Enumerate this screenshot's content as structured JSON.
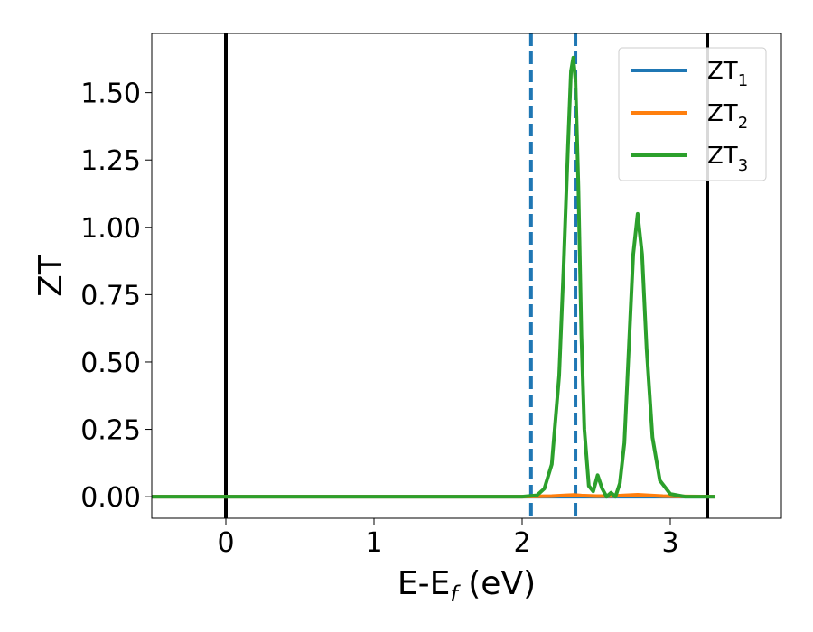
{
  "chart_data": {
    "type": "line",
    "xlabel": "E-E",
    "xlabel_sub": "f",
    "xlabel_unit": " (eV)",
    "ylabel": "ZT",
    "xlim": [
      -0.5,
      3.75
    ],
    "ylim": [
      -0.08,
      1.72
    ],
    "x_ticks": [
      {
        "value": 0,
        "label": "0"
      },
      {
        "value": 1,
        "label": "1"
      },
      {
        "value": 2,
        "label": "2"
      },
      {
        "value": 3,
        "label": "3"
      }
    ],
    "y_ticks": [
      {
        "value": 0.0,
        "label": "0.00"
      },
      {
        "value": 0.25,
        "label": "0.25"
      },
      {
        "value": 0.5,
        "label": "0.50"
      },
      {
        "value": 0.75,
        "label": "0.75"
      },
      {
        "value": 1.0,
        "label": "1.00"
      },
      {
        "value": 1.25,
        "label": "1.25"
      },
      {
        "value": 1.5,
        "label": "1.50"
      }
    ],
    "grid": false,
    "legend_position": "top-right",
    "vertical_lines": [
      {
        "x": 0.0,
        "style": "solid",
        "color": "#000000"
      },
      {
        "x": 3.25,
        "style": "solid",
        "color": "#000000"
      },
      {
        "x": 2.06,
        "style": "dashed",
        "color": "#1f77b4"
      },
      {
        "x": 2.36,
        "style": "dashed",
        "color": "#1f77b4"
      }
    ],
    "series": [
      {
        "name": "ZT",
        "name_sub": "1",
        "color": "#1f77b4",
        "x": [
          -0.5,
          1.0,
          2.0,
          2.5,
          3.0,
          3.3
        ],
        "y": [
          0,
          0,
          0,
          0,
          0,
          0
        ]
      },
      {
        "name": "ZT",
        "name_sub": "2",
        "color": "#ff7f0e",
        "x": [
          -0.5,
          2.0,
          2.1,
          2.2,
          2.3,
          2.35,
          2.4,
          2.5,
          2.6,
          2.7,
          2.78,
          2.85,
          2.95,
          3.05,
          3.3
        ],
        "y": [
          0,
          0,
          0.001,
          0.002,
          0.005,
          0.006,
          0.004,
          0.002,
          0.002,
          0.005,
          0.007,
          0.005,
          0.002,
          0.001,
          0
        ]
      },
      {
        "name": "ZT",
        "name_sub": "3",
        "color": "#2ca02c",
        "x": [
          -0.5,
          2.0,
          2.1,
          2.15,
          2.2,
          2.25,
          2.28,
          2.31,
          2.33,
          2.345,
          2.36,
          2.38,
          2.4,
          2.42,
          2.45,
          2.48,
          2.51,
          2.54,
          2.57,
          2.6,
          2.63,
          2.66,
          2.69,
          2.72,
          2.75,
          2.78,
          2.81,
          2.84,
          2.88,
          2.93,
          3.0,
          3.1,
          3.3
        ],
        "y": [
          0,
          0,
          0.005,
          0.03,
          0.12,
          0.45,
          0.85,
          1.3,
          1.58,
          1.63,
          1.55,
          1.15,
          0.6,
          0.25,
          0.04,
          0.02,
          0.08,
          0.03,
          0.0,
          0.015,
          0.0,
          0.05,
          0.2,
          0.55,
          0.9,
          1.05,
          0.9,
          0.55,
          0.22,
          0.06,
          0.01,
          0.0,
          0.0
        ]
      }
    ]
  }
}
